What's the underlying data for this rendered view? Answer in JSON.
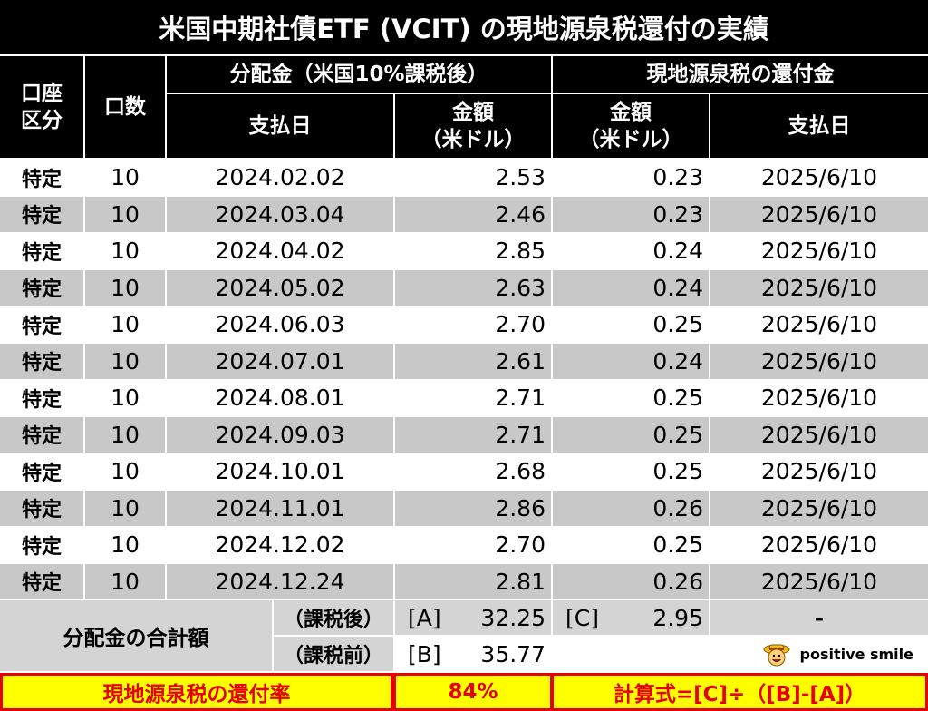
{
  "title": "米国中期社債ETF (VCIT) の現地源泉税還付の実績",
  "headers": {
    "account": "口座\n区分",
    "units": "口数",
    "dividend_group": "分配金（米国10%課税後）",
    "refund_group": "現地源泉税の還付金",
    "pay_date": "支払日",
    "amount": "金額\n（米ドル）",
    "refund_amount": "金額\n（米ドル）",
    "refund_date": "支払日"
  },
  "rows": [
    {
      "account": "特定",
      "units": "10",
      "pay_date": "2024.02.02",
      "amount": "2.53",
      "refund": "0.23",
      "refund_date": "2025/6/10"
    },
    {
      "account": "特定",
      "units": "10",
      "pay_date": "2024.03.04",
      "amount": "2.46",
      "refund": "0.23",
      "refund_date": "2025/6/10"
    },
    {
      "account": "特定",
      "units": "10",
      "pay_date": "2024.04.02",
      "amount": "2.85",
      "refund": "0.24",
      "refund_date": "2025/6/10"
    },
    {
      "account": "特定",
      "units": "10",
      "pay_date": "2024.05.02",
      "amount": "2.63",
      "refund": "0.24",
      "refund_date": "2025/6/10"
    },
    {
      "account": "特定",
      "units": "10",
      "pay_date": "2024.06.03",
      "amount": "2.70",
      "refund": "0.25",
      "refund_date": "2025/6/10"
    },
    {
      "account": "特定",
      "units": "10",
      "pay_date": "2024.07.01",
      "amount": "2.61",
      "refund": "0.24",
      "refund_date": "2025/6/10"
    },
    {
      "account": "特定",
      "units": "10",
      "pay_date": "2024.08.01",
      "amount": "2.71",
      "refund": "0.25",
      "refund_date": "2025/6/10"
    },
    {
      "account": "特定",
      "units": "10",
      "pay_date": "2024.09.03",
      "amount": "2.71",
      "refund": "0.25",
      "refund_date": "2025/6/10"
    },
    {
      "account": "特定",
      "units": "10",
      "pay_date": "2024.10.01",
      "amount": "2.68",
      "refund": "0.25",
      "refund_date": "2025/6/10"
    },
    {
      "account": "特定",
      "units": "10",
      "pay_date": "2024.11.01",
      "amount": "2.86",
      "refund": "0.26",
      "refund_date": "2025/6/10"
    },
    {
      "account": "特定",
      "units": "10",
      "pay_date": "2024.12.02",
      "amount": "2.70",
      "refund": "0.25",
      "refund_date": "2025/6/10"
    },
    {
      "account": "特定",
      "units": "10",
      "pay_date": "2024.12.24",
      "amount": "2.81",
      "refund": "0.26",
      "refund_date": "2025/6/10"
    }
  ],
  "summary": {
    "label": "分配金の合計額",
    "after_tax_label": "（課税後）",
    "before_tax_label": "（課税前）",
    "a_tag": "[A]",
    "a_value": "32.25",
    "b_tag": "[B]",
    "b_value": "35.77",
    "c_tag": "[C]",
    "c_value": "2.95",
    "dash": "-",
    "watermark": "positive smile"
  },
  "footer": {
    "label": "現地源泉税の還付率",
    "rate": "84%",
    "formula": "計算式=[C]÷（[B]-[A]）"
  }
}
